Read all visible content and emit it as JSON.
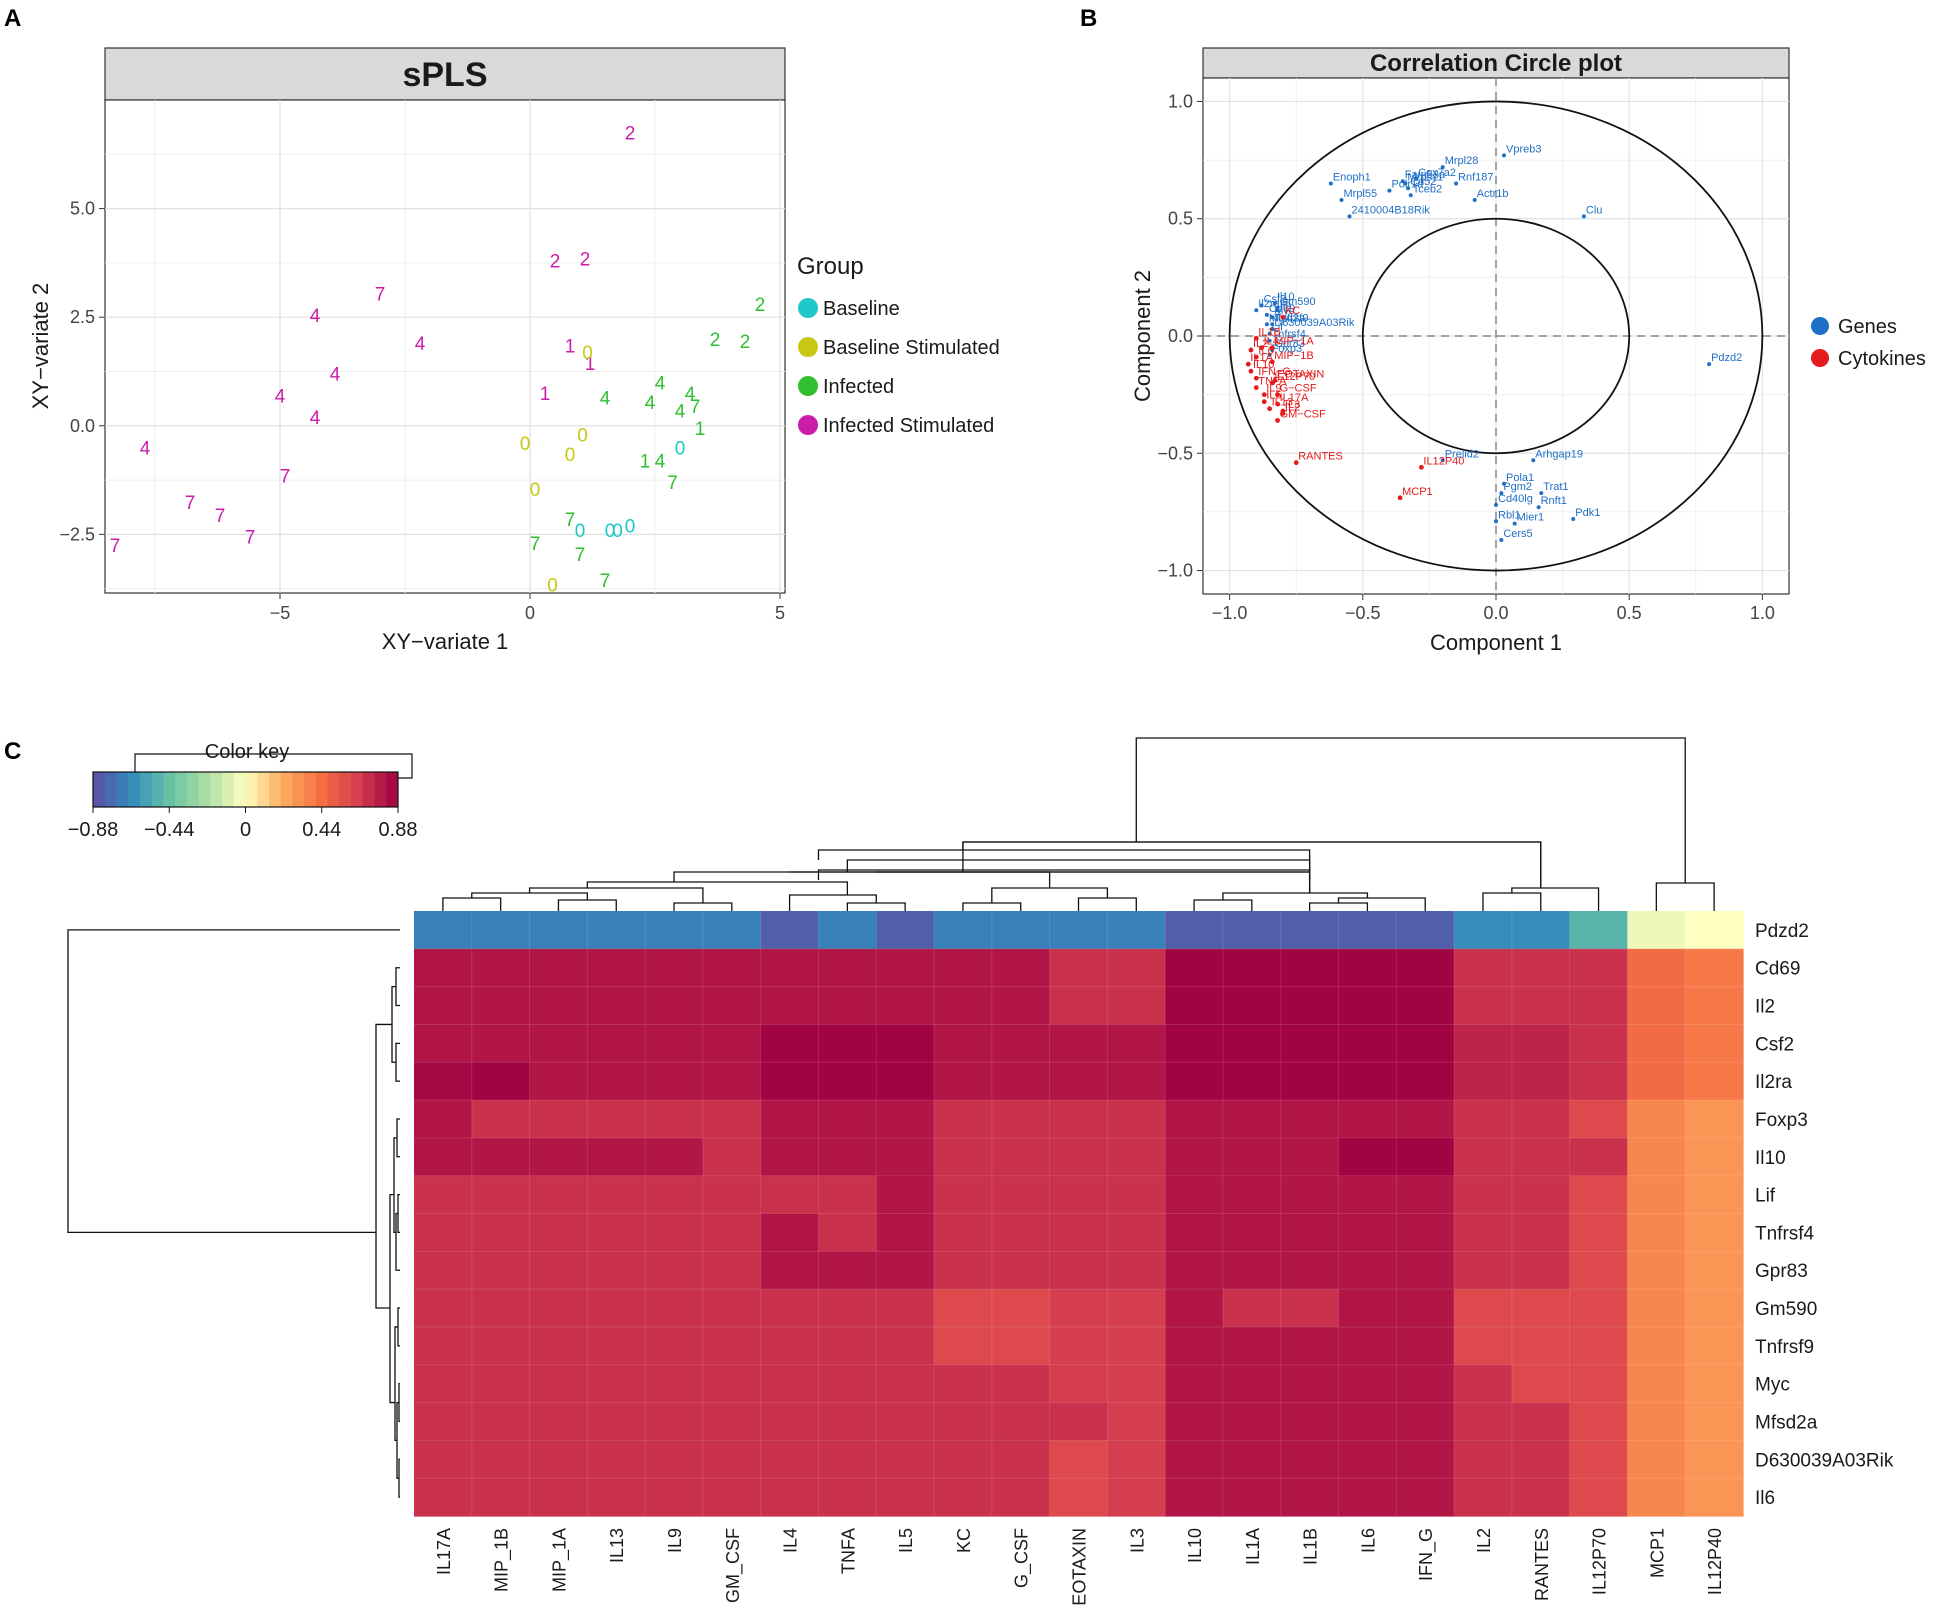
{
  "panels": {
    "a": "A",
    "b": "B",
    "c": "C"
  },
  "chart_data": [
    {
      "type": "scatter",
      "panel": "A",
      "title": "sPLS",
      "xlabel": "XY−variate 1",
      "ylabel": "XY−variate 2",
      "xlim": [
        -8.5,
        5.1
      ],
      "ylim": [
        -3.85,
        7.5
      ],
      "xticks": [
        -5,
        0,
        5
      ],
      "yticks": [
        -2.5,
        0.0,
        2.5,
        5.0
      ],
      "xtick_labels": [
        "−5",
        "0",
        "5"
      ],
      "ytick_labels": [
        "−2.5",
        "0.0",
        "2.5",
        "5.0"
      ],
      "legend_title": "Group",
      "legend_position": "right",
      "groups": [
        {
          "name": "Baseline",
          "color": "#1ec8c8"
        },
        {
          "name": "Baseline Stimulated",
          "color": "#c8c814"
        },
        {
          "name": "Infected",
          "color": "#2fbf2f"
        },
        {
          "name": "Infected Stimulated",
          "color": "#cc1caa"
        }
      ],
      "points": [
        {
          "x": 2.0,
          "y": 6.75,
          "label": "2",
          "group": 3
        },
        {
          "x": 0.5,
          "y": 3.8,
          "label": "2",
          "group": 3
        },
        {
          "x": 1.1,
          "y": 3.85,
          "label": "2",
          "group": 3
        },
        {
          "x": -3.0,
          "y": 3.05,
          "label": "7",
          "group": 3
        },
        {
          "x": -4.3,
          "y": 2.55,
          "label": "4",
          "group": 3
        },
        {
          "x": -2.2,
          "y": 1.9,
          "label": "4",
          "group": 3
        },
        {
          "x": 0.8,
          "y": 1.85,
          "label": "1",
          "group": 3
        },
        {
          "x": 1.2,
          "y": 1.45,
          "label": "1",
          "group": 3
        },
        {
          "x": -3.9,
          "y": 1.2,
          "label": "4",
          "group": 3
        },
        {
          "x": -5.0,
          "y": 0.7,
          "label": "4",
          "group": 3
        },
        {
          "x": -4.3,
          "y": 0.2,
          "label": "4",
          "group": 3
        },
        {
          "x": 0.3,
          "y": 0.75,
          "label": "1",
          "group": 3
        },
        {
          "x": -7.7,
          "y": -0.5,
          "label": "4",
          "group": 3
        },
        {
          "x": -4.9,
          "y": -1.15,
          "label": "7",
          "group": 3
        },
        {
          "x": -6.8,
          "y": -1.75,
          "label": "7",
          "group": 3
        },
        {
          "x": -6.2,
          "y": -2.05,
          "label": "7",
          "group": 3
        },
        {
          "x": -5.6,
          "y": -2.55,
          "label": "7",
          "group": 3
        },
        {
          "x": -8.3,
          "y": -2.75,
          "label": "7",
          "group": 3
        },
        {
          "x": 4.6,
          "y": 2.8,
          "label": "2",
          "group": 2
        },
        {
          "x": 3.7,
          "y": 2.0,
          "label": "2",
          "group": 2
        },
        {
          "x": 4.3,
          "y": 1.95,
          "label": "2",
          "group": 2
        },
        {
          "x": 2.6,
          "y": 1.0,
          "label": "4",
          "group": 2
        },
        {
          "x": 3.2,
          "y": 0.75,
          "label": "4",
          "group": 2
        },
        {
          "x": 1.5,
          "y": 0.65,
          "label": "4",
          "group": 2
        },
        {
          "x": 2.4,
          "y": 0.55,
          "label": "4",
          "group": 2
        },
        {
          "x": 3.3,
          "y": 0.45,
          "label": "7",
          "group": 2
        },
        {
          "x": 3.0,
          "y": 0.35,
          "label": "4",
          "group": 2
        },
        {
          "x": 3.4,
          "y": -0.05,
          "label": "1",
          "group": 2
        },
        {
          "x": 2.3,
          "y": -0.8,
          "label": "1",
          "group": 2
        },
        {
          "x": 2.6,
          "y": -0.8,
          "label": "4",
          "group": 2
        },
        {
          "x": 2.85,
          "y": -1.3,
          "label": "7",
          "group": 2
        },
        {
          "x": 0.8,
          "y": -2.15,
          "label": "7",
          "group": 2
        },
        {
          "x": 0.1,
          "y": -2.7,
          "label": "7",
          "group": 2
        },
        {
          "x": 1.0,
          "y": -2.95,
          "label": "7",
          "group": 2
        },
        {
          "x": 1.5,
          "y": -3.55,
          "label": "7",
          "group": 2
        },
        {
          "x": 1.15,
          "y": 1.7,
          "label": "0",
          "group": 1
        },
        {
          "x": 1.05,
          "y": -0.2,
          "label": "0",
          "group": 1
        },
        {
          "x": -0.1,
          "y": -0.4,
          "label": "0",
          "group": 1
        },
        {
          "x": 0.8,
          "y": -0.65,
          "label": "0",
          "group": 1
        },
        {
          "x": 0.1,
          "y": -1.45,
          "label": "0",
          "group": 1
        },
        {
          "x": 0.45,
          "y": -3.65,
          "label": "0",
          "group": 1
        },
        {
          "x": 3.0,
          "y": -0.5,
          "label": "0",
          "group": 0
        },
        {
          "x": 1.0,
          "y": -2.4,
          "label": "0",
          "group": 0
        },
        {
          "x": 1.6,
          "y": -2.4,
          "label": "0",
          "group": 0
        },
        {
          "x": 1.75,
          "y": -2.4,
          "label": "0",
          "group": 0
        },
        {
          "x": 2.0,
          "y": -2.3,
          "label": "0",
          "group": 0
        }
      ]
    },
    {
      "type": "scatter",
      "panel": "B",
      "title": "Correlation Circle plot",
      "xlabel": "Component  1",
      "ylabel": "Component  2",
      "xlim": [
        -1.1,
        1.1
      ],
      "ylim": [
        -1.1,
        1.1
      ],
      "xticks": [
        -1.0,
        -0.5,
        0.0,
        0.5,
        1.0
      ],
      "yticks": [
        -1.0,
        -0.5,
        0.0,
        0.5,
        1.0
      ],
      "xtick_labels": [
        "−1.0",
        "−0.5",
        "0.0",
        "0.5",
        "1.0"
      ],
      "ytick_labels": [
        "−1.0",
        "−0.5",
        "0.0",
        "0.5",
        "1.0"
      ],
      "circle_radii": [
        1.0,
        0.5
      ],
      "legend_position": "right",
      "legend": [
        {
          "name": "Genes",
          "color": "#1f6fc6"
        },
        {
          "name": "Cytokines",
          "color": "#e41a1c"
        }
      ],
      "gene_points": [
        {
          "label": "Mrps11",
          "x": -0.34,
          "y": 0.65
        },
        {
          "label": "Cox7a2",
          "x": -0.3,
          "y": 0.67
        },
        {
          "label": "Fam53a",
          "x": -0.35,
          "y": 0.66
        },
        {
          "label": "Mrpl28",
          "x": -0.2,
          "y": 0.72
        },
        {
          "label": "Polr1d",
          "x": -0.4,
          "y": 0.62
        },
        {
          "label": "Rnf187",
          "x": -0.15,
          "y": 0.65
        },
        {
          "label": "Enoph1",
          "x": -0.62,
          "y": 0.65
        },
        {
          "label": "Mrpl55",
          "x": -0.58,
          "y": 0.58
        },
        {
          "label": "Cd52",
          "x": -0.33,
          "y": 0.63
        },
        {
          "label": "Actr1b",
          "x": -0.08,
          "y": 0.58
        },
        {
          "label": "Vpreb3",
          "x": 0.03,
          "y": 0.77
        },
        {
          "label": "Clu",
          "x": 0.33,
          "y": 0.51
        },
        {
          "label": "2410004B18Rik",
          "x": -0.55,
          "y": 0.51
        },
        {
          "label": "Tceb2",
          "x": -0.32,
          "y": 0.6
        },
        {
          "label": "Csf2",
          "x": -0.88,
          "y": 0.13
        },
        {
          "label": "Il10",
          "x": -0.83,
          "y": 0.14
        },
        {
          "label": "Il2ra",
          "x": -0.9,
          "y": 0.11
        },
        {
          "label": "Gm590",
          "x": -0.82,
          "y": 0.12
        },
        {
          "label": "Il6",
          "x": -0.82,
          "y": 0.11
        },
        {
          "label": "Cd69",
          "x": -0.86,
          "y": 0.09
        },
        {
          "label": "Myc",
          "x": -0.84,
          "y": 0.08
        },
        {
          "label": "Mfsd2a",
          "x": -0.86,
          "y": 0.05
        },
        {
          "label": "Tnfrsf9",
          "x": -0.84,
          "y": 0.05
        },
        {
          "label": "D630039A03Rik",
          "x": -0.84,
          "y": 0.03
        },
        {
          "label": "Lif",
          "x": -0.85,
          "y": 0.01
        },
        {
          "label": "Tnfrsf4",
          "x": -0.85,
          "y": -0.02
        },
        {
          "label": "Foxp3",
          "x": -0.85,
          "y": -0.08
        },
        {
          "label": "Gpr83",
          "x": -0.84,
          "y": -0.06
        },
        {
          "label": "Pdzd2",
          "x": 0.8,
          "y": -0.12
        },
        {
          "label": "Prelid2",
          "x": -0.2,
          "y": -0.53
        },
        {
          "label": "Arhgap19",
          "x": 0.14,
          "y": -0.53
        },
        {
          "label": "Pola1",
          "x": 0.03,
          "y": -0.63
        },
        {
          "label": "Pgm2",
          "x": 0.02,
          "y": -0.67
        },
        {
          "label": "Trat1",
          "x": 0.17,
          "y": -0.67
        },
        {
          "label": "Cd40lg",
          "x": 0.0,
          "y": -0.72
        },
        {
          "label": "Rnft1",
          "x": 0.16,
          "y": -0.73
        },
        {
          "label": "Rbl1",
          "x": 0.0,
          "y": -0.79
        },
        {
          "label": "Mier1",
          "x": 0.07,
          "y": -0.8
        },
        {
          "label": "Pdk1",
          "x": 0.29,
          "y": -0.78
        },
        {
          "label": "Cers5",
          "x": 0.02,
          "y": -0.87
        }
      ],
      "cytokine_points": [
        {
          "label": "KC",
          "x": -0.8,
          "y": 0.08
        },
        {
          "label": "IL1B",
          "x": -0.9,
          "y": -0.01
        },
        {
          "label": "IL4",
          "x": -0.88,
          "y": -0.05
        },
        {
          "label": "IL2",
          "x": -0.92,
          "y": -0.06
        },
        {
          "label": "MIP−1A",
          "x": -0.84,
          "y": -0.05
        },
        {
          "label": "IL6",
          "x": -0.9,
          "y": -0.09
        },
        {
          "label": "MIP−1B",
          "x": -0.84,
          "y": -0.11
        },
        {
          "label": "IL1A",
          "x": -0.93,
          "y": -0.12
        },
        {
          "label": "IL10",
          "x": -0.92,
          "y": -0.15
        },
        {
          "label": "IFN−G",
          "x": -0.9,
          "y": -0.18
        },
        {
          "label": "EOTAXIN",
          "x": -0.83,
          "y": -0.19
        },
        {
          "label": "IL12P70",
          "x": -0.84,
          "y": -0.2
        },
        {
          "label": "TNFA",
          "x": -0.9,
          "y": -0.22
        },
        {
          "label": "IL9",
          "x": -0.87,
          "y": -0.25
        },
        {
          "label": "G−CSF",
          "x": -0.82,
          "y": -0.25
        },
        {
          "label": "IL5",
          "x": -0.87,
          "y": -0.28
        },
        {
          "label": "IL17A",
          "x": -0.82,
          "y": -0.29
        },
        {
          "label": "IL13",
          "x": -0.85,
          "y": -0.31
        },
        {
          "label": "IL3",
          "x": -0.8,
          "y": -0.32
        },
        {
          "label": "IL2",
          "x": -0.8,
          "y": -0.33
        },
        {
          "label": "GM−CSF",
          "x": -0.82,
          "y": -0.36
        },
        {
          "label": "RANTES",
          "x": -0.75,
          "y": -0.54
        },
        {
          "label": "IL12P40",
          "x": -0.28,
          "y": -0.56
        },
        {
          "label": "MCP1",
          "x": -0.36,
          "y": -0.69
        }
      ]
    },
    {
      "type": "heatmap",
      "panel": "C",
      "title": "",
      "color_key_title": "Color key",
      "color_key_ticks": [
        -0.88,
        -0.44,
        0,
        0.44,
        0.88
      ],
      "color_key_labels": [
        "−0.88",
        "−0.44",
        "0",
        "0.44",
        "0.88"
      ],
      "value_range": [
        -0.88,
        0.88
      ],
      "columns": [
        "IL17A",
        "MIP_1B",
        "MIP_1A",
        "IL13",
        "IL9",
        "GM_CSF",
        "IL4",
        "TNFA",
        "IL5",
        "KC",
        "G_CSF",
        "EOTAXIN",
        "IL3",
        "IL10",
        "IL1A",
        "IL1B",
        "IL6",
        "IFN_G",
        "IL2",
        "RANTES",
        "IL12P70",
        "MCP1",
        "IL12P40"
      ],
      "rows": [
        "Pdzd2",
        "Cd69",
        "Il2",
        "Csf2",
        "Il2ra",
        "Foxp3",
        "Il10",
        "Lif",
        "Tnfrsf4",
        "Gpr83",
        "Gm590",
        "Tnfrsf9",
        "Myc",
        "Mfsd2a",
        "D630039A03Rik",
        "Il6"
      ],
      "values": [
        [
          -0.7,
          -0.7,
          -0.7,
          -0.7,
          -0.7,
          -0.7,
          -0.82,
          -0.7,
          -0.82,
          -0.7,
          -0.7,
          -0.7,
          -0.7,
          -0.82,
          -0.82,
          -0.82,
          -0.82,
          -0.82,
          -0.65,
          -0.65,
          -0.5,
          -0.05,
          0.0
        ],
        [
          0.8,
          0.8,
          0.8,
          0.8,
          0.8,
          0.8,
          0.8,
          0.8,
          0.8,
          0.8,
          0.8,
          0.7,
          0.7,
          0.87,
          0.87,
          0.87,
          0.87,
          0.87,
          0.7,
          0.7,
          0.7,
          0.45,
          0.4
        ],
        [
          0.8,
          0.8,
          0.8,
          0.8,
          0.8,
          0.8,
          0.8,
          0.8,
          0.8,
          0.8,
          0.8,
          0.7,
          0.7,
          0.87,
          0.87,
          0.87,
          0.87,
          0.87,
          0.7,
          0.7,
          0.7,
          0.45,
          0.4
        ],
        [
          0.8,
          0.8,
          0.8,
          0.8,
          0.8,
          0.8,
          0.87,
          0.87,
          0.87,
          0.8,
          0.8,
          0.8,
          0.8,
          0.87,
          0.87,
          0.87,
          0.87,
          0.87,
          0.75,
          0.75,
          0.7,
          0.45,
          0.4
        ],
        [
          0.85,
          0.87,
          0.8,
          0.8,
          0.8,
          0.8,
          0.87,
          0.87,
          0.87,
          0.8,
          0.8,
          0.8,
          0.8,
          0.87,
          0.87,
          0.87,
          0.87,
          0.87,
          0.75,
          0.75,
          0.7,
          0.45,
          0.4
        ],
        [
          0.8,
          0.7,
          0.7,
          0.7,
          0.7,
          0.7,
          0.8,
          0.8,
          0.8,
          0.7,
          0.7,
          0.7,
          0.7,
          0.8,
          0.8,
          0.8,
          0.8,
          0.8,
          0.7,
          0.7,
          0.6,
          0.35,
          0.3
        ],
        [
          0.8,
          0.8,
          0.8,
          0.8,
          0.8,
          0.7,
          0.8,
          0.8,
          0.8,
          0.7,
          0.7,
          0.7,
          0.7,
          0.8,
          0.8,
          0.8,
          0.87,
          0.87,
          0.7,
          0.7,
          0.7,
          0.35,
          0.3
        ],
        [
          0.7,
          0.7,
          0.7,
          0.7,
          0.7,
          0.7,
          0.7,
          0.7,
          0.8,
          0.7,
          0.7,
          0.7,
          0.7,
          0.8,
          0.8,
          0.8,
          0.8,
          0.8,
          0.7,
          0.7,
          0.6,
          0.35,
          0.3
        ],
        [
          0.7,
          0.7,
          0.7,
          0.7,
          0.7,
          0.7,
          0.8,
          0.7,
          0.8,
          0.7,
          0.7,
          0.7,
          0.7,
          0.8,
          0.8,
          0.8,
          0.8,
          0.8,
          0.7,
          0.7,
          0.6,
          0.35,
          0.3
        ],
        [
          0.7,
          0.7,
          0.7,
          0.7,
          0.7,
          0.7,
          0.8,
          0.8,
          0.8,
          0.7,
          0.7,
          0.7,
          0.7,
          0.8,
          0.8,
          0.8,
          0.8,
          0.8,
          0.7,
          0.7,
          0.6,
          0.35,
          0.3
        ],
        [
          0.7,
          0.7,
          0.7,
          0.7,
          0.7,
          0.7,
          0.7,
          0.7,
          0.7,
          0.6,
          0.6,
          0.65,
          0.65,
          0.8,
          0.7,
          0.7,
          0.8,
          0.8,
          0.6,
          0.6,
          0.6,
          0.35,
          0.3
        ],
        [
          0.7,
          0.7,
          0.7,
          0.7,
          0.7,
          0.7,
          0.7,
          0.7,
          0.7,
          0.6,
          0.6,
          0.65,
          0.65,
          0.8,
          0.8,
          0.8,
          0.8,
          0.8,
          0.6,
          0.6,
          0.6,
          0.35,
          0.3
        ],
        [
          0.7,
          0.7,
          0.7,
          0.7,
          0.7,
          0.7,
          0.7,
          0.7,
          0.7,
          0.7,
          0.7,
          0.65,
          0.65,
          0.8,
          0.8,
          0.8,
          0.8,
          0.8,
          0.7,
          0.6,
          0.6,
          0.35,
          0.3
        ],
        [
          0.7,
          0.7,
          0.7,
          0.7,
          0.7,
          0.7,
          0.7,
          0.7,
          0.7,
          0.7,
          0.7,
          0.7,
          0.65,
          0.8,
          0.8,
          0.8,
          0.8,
          0.8,
          0.7,
          0.7,
          0.6,
          0.35,
          0.3
        ],
        [
          0.7,
          0.7,
          0.7,
          0.7,
          0.7,
          0.7,
          0.7,
          0.7,
          0.7,
          0.7,
          0.7,
          0.6,
          0.65,
          0.8,
          0.8,
          0.8,
          0.8,
          0.8,
          0.7,
          0.7,
          0.6,
          0.35,
          0.3
        ],
        [
          0.7,
          0.7,
          0.7,
          0.7,
          0.7,
          0.7,
          0.7,
          0.7,
          0.7,
          0.7,
          0.7,
          0.6,
          0.65,
          0.8,
          0.8,
          0.8,
          0.8,
          0.8,
          0.7,
          0.7,
          0.6,
          0.35,
          0.3
        ]
      ]
    }
  ]
}
